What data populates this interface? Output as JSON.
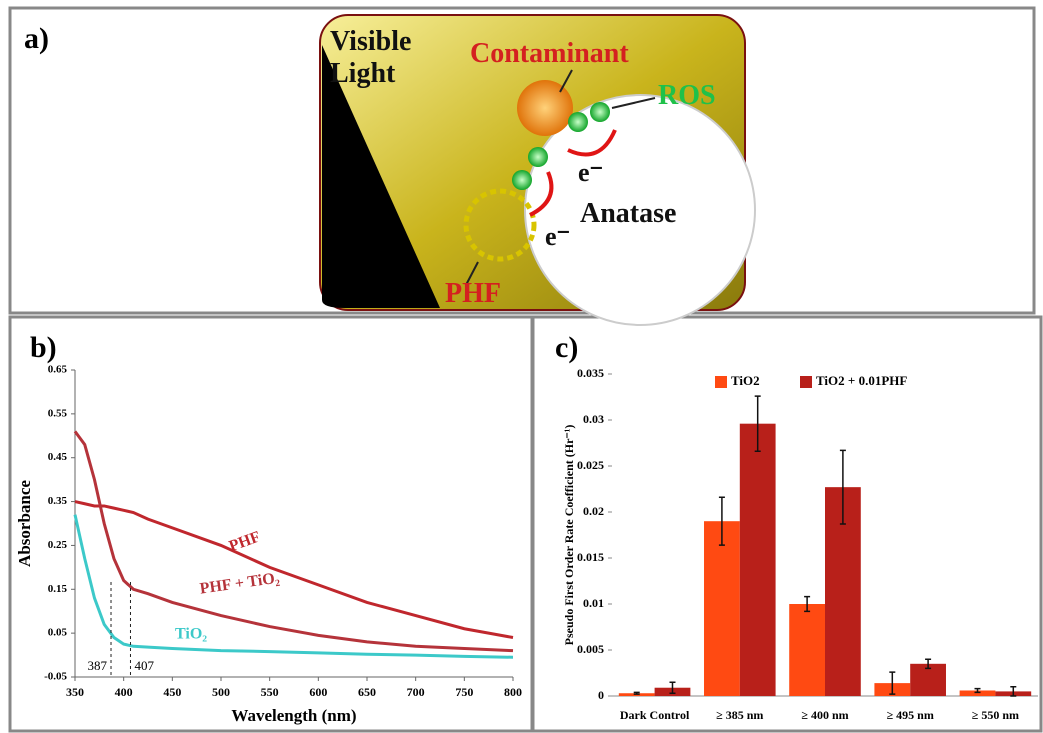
{
  "diagram": {
    "label": "a)",
    "light": "Visible Light",
    "contaminant": "Contaminant",
    "ros": "ROS",
    "electron_1": "e⁻",
    "electron_2": "e⁻",
    "anatase": "Anatase",
    "phf": "PHF"
  },
  "chart_data": [
    {
      "type": "line",
      "label": "b)",
      "x_label": "Wavelength (nm)",
      "y_label": "Absorbance",
      "x": [
        350,
        360,
        370,
        380,
        390,
        400,
        410,
        425,
        450,
        500,
        550,
        600,
        650,
        700,
        750,
        800
      ],
      "series": [
        {
          "name": "PHF",
          "color": "#c0272d",
          "values": [
            0.35,
            0.345,
            0.34,
            0.34,
            0.335,
            0.33,
            0.325,
            0.31,
            0.29,
            0.25,
            0.2,
            0.16,
            0.12,
            0.09,
            0.06,
            0.04
          ]
        },
        {
          "name": "PHF + TiO₂",
          "color": "#b5333a",
          "values": [
            0.51,
            0.48,
            0.4,
            0.3,
            0.22,
            0.17,
            0.15,
            0.14,
            0.12,
            0.09,
            0.065,
            0.045,
            0.03,
            0.02,
            0.015,
            0.01
          ]
        },
        {
          "name": "TiO₂",
          "color": "#3cc9c9",
          "values": [
            0.32,
            0.22,
            0.13,
            0.07,
            0.04,
            0.025,
            0.02,
            0.018,
            0.015,
            0.01,
            0.008,
            0.005,
            0.002,
            0,
            -0.003,
            -0.005
          ]
        }
      ],
      "markers": [
        387,
        407
      ],
      "xlim": [
        350,
        800
      ],
      "xticks": [
        350,
        400,
        450,
        500,
        550,
        600,
        650,
        700,
        750,
        800
      ],
      "ylim": [
        -0.05,
        0.65
      ],
      "yticks": [
        -0.05,
        0.05,
        0.15,
        0.25,
        0.35,
        0.45,
        0.55,
        0.65
      ]
    },
    {
      "type": "bar",
      "label": "c)",
      "y_label": "Pseudo First Order Rate Coefficient (Hr⁻¹)",
      "categories": [
        "Dark Control",
        "≥ 385 nm",
        "≥ 400 nm",
        "≥ 495 nm",
        "≥ 550 nm"
      ],
      "series": [
        {
          "name": "TiO2",
          "color": "#ff4a12",
          "values": [
            0.0003,
            0.019,
            0.01,
            0.0014,
            0.0006
          ],
          "errors": [
            0.0001,
            0.0026,
            0.0008,
            0.0012,
            0.0002
          ]
        },
        {
          "name": "TiO2 + 0.01PHF",
          "color": "#b8201a",
          "values": [
            0.0009,
            0.0296,
            0.0227,
            0.0035,
            0.0005
          ],
          "errors": [
            0.0006,
            0.003,
            0.004,
            0.0005,
            0.0005
          ]
        }
      ],
      "ylim": [
        0,
        0.035
      ],
      "yticks": [
        0,
        0.005,
        0.01,
        0.015,
        0.02,
        0.025,
        0.03,
        0.035
      ]
    }
  ]
}
